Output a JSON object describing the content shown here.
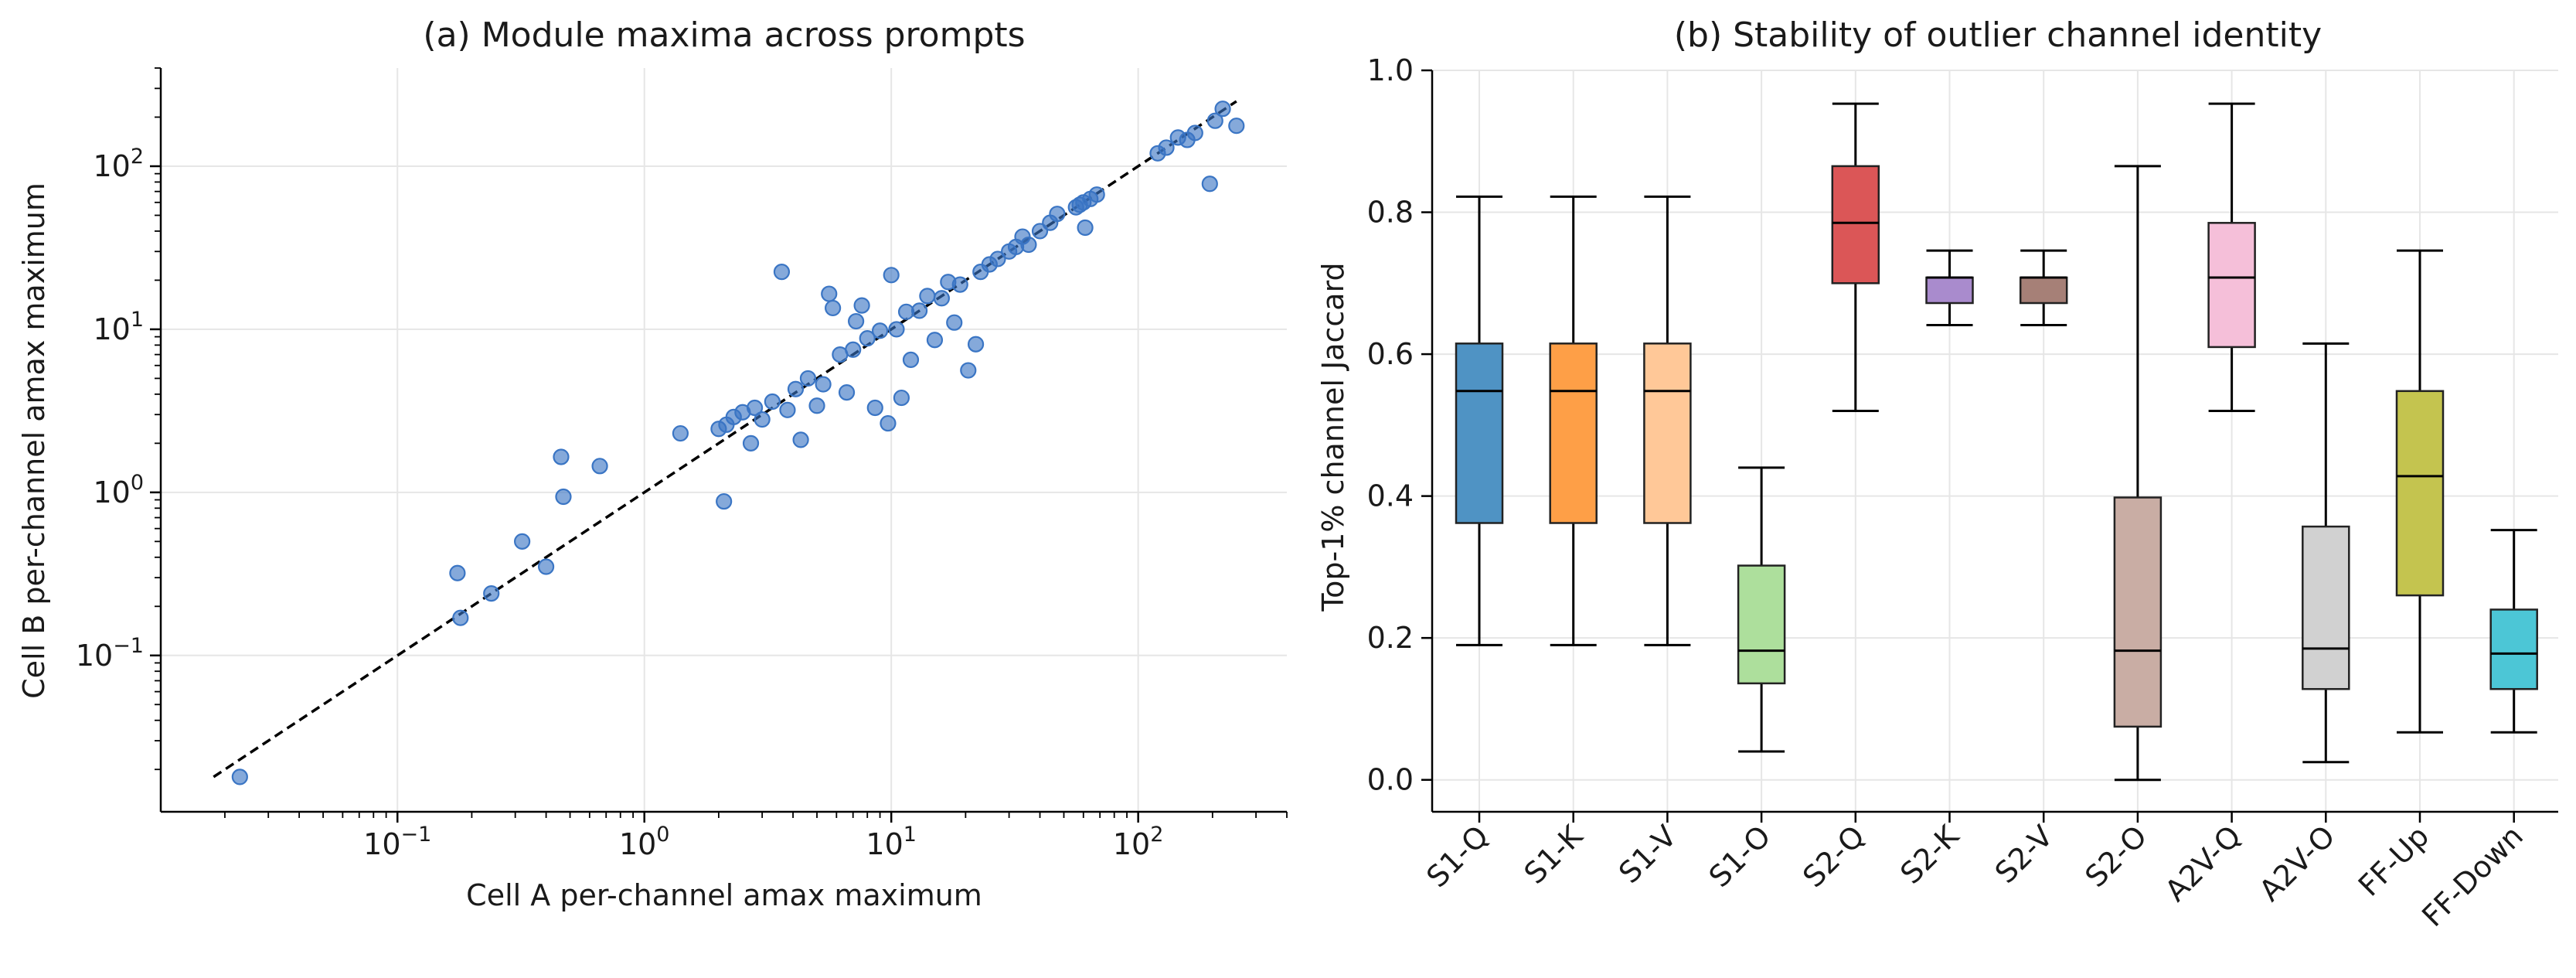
{
  "chart_data": [
    {
      "type": "scatter",
      "title": "(a) Module maxima across prompts",
      "xlabel": "Cell A per-channel amax maximum",
      "ylabel": "Cell B per-channel amax maximum",
      "xscale": "log",
      "yscale": "log",
      "xlim": [
        0.011,
        400
      ],
      "ylim": [
        0.011,
        400
      ],
      "x_ticks": [
        {
          "base": "10",
          "exp": "−1"
        },
        {
          "base": "10",
          "exp": "0"
        },
        {
          "base": "10",
          "exp": "1"
        },
        {
          "base": "10",
          "exp": "2"
        }
      ],
      "y_ticks": [
        {
          "base": "10",
          "exp": "−1"
        },
        {
          "base": "10",
          "exp": "0"
        },
        {
          "base": "10",
          "exp": "1"
        },
        {
          "base": "10",
          "exp": "2"
        }
      ],
      "grid": true,
      "reference_line": {
        "style": "dashed",
        "color": "#000000",
        "from": [
          0.018,
          0.018
        ],
        "to": [
          250,
          250
        ]
      },
      "point_color": "#3a75c4",
      "points": [
        [
          0.023,
          0.018
        ],
        [
          0.18,
          0.17
        ],
        [
          0.175,
          0.32
        ],
        [
          0.24,
          0.24
        ],
        [
          0.32,
          0.5
        ],
        [
          0.4,
          0.35
        ],
        [
          0.46,
          1.65
        ],
        [
          0.47,
          0.94
        ],
        [
          0.66,
          1.45
        ],
        [
          1.4,
          2.3
        ],
        [
          2.0,
          2.45
        ],
        [
          2.1,
          0.88
        ],
        [
          2.15,
          2.6
        ],
        [
          2.3,
          2.9
        ],
        [
          2.5,
          3.1
        ],
        [
          2.7,
          2.0
        ],
        [
          2.8,
          3.3
        ],
        [
          3.0,
          2.8
        ],
        [
          3.3,
          3.6
        ],
        [
          3.6,
          22.5
        ],
        [
          3.8,
          3.2
        ],
        [
          4.1,
          4.3
        ],
        [
          4.3,
          2.1
        ],
        [
          4.6,
          5.0
        ],
        [
          5.0,
          3.4
        ],
        [
          5.3,
          4.6
        ],
        [
          5.6,
          16.5
        ],
        [
          5.8,
          13.5
        ],
        [
          6.2,
          7.0
        ],
        [
          6.6,
          4.1
        ],
        [
          7.0,
          7.5
        ],
        [
          7.2,
          11.2
        ],
        [
          7.6,
          14.0
        ],
        [
          8.0,
          8.8
        ],
        [
          8.6,
          3.3
        ],
        [
          9.0,
          9.8
        ],
        [
          9.7,
          2.65
        ],
        [
          10.0,
          21.5
        ],
        [
          10.5,
          10.0
        ],
        [
          11.0,
          3.8
        ],
        [
          11.5,
          12.8
        ],
        [
          12.0,
          6.5
        ],
        [
          13.0,
          13.0
        ],
        [
          14.0,
          16.0
        ],
        [
          15.0,
          8.6
        ],
        [
          16.0,
          15.5
        ],
        [
          17.0,
          19.5
        ],
        [
          18.0,
          11.0
        ],
        [
          19.0,
          18.8
        ],
        [
          20.5,
          5.6
        ],
        [
          22.0,
          8.1
        ],
        [
          23.0,
          22.5
        ],
        [
          25.0,
          25.0
        ],
        [
          27.0,
          27.0
        ],
        [
          30.0,
          30.0
        ],
        [
          32.0,
          32.0
        ],
        [
          34.0,
          37.0
        ],
        [
          36.0,
          33.0
        ],
        [
          40.0,
          40.0
        ],
        [
          44.0,
          45.0
        ],
        [
          47.0,
          51.0
        ],
        [
          56.0,
          56.0
        ],
        [
          58.0,
          58.0
        ],
        [
          60.0,
          60.0
        ],
        [
          61.0,
          42.0
        ],
        [
          64.0,
          63.0
        ],
        [
          68.0,
          67.0
        ],
        [
          120.0,
          120.0
        ],
        [
          130.0,
          130.0
        ],
        [
          145.0,
          150.0
        ],
        [
          158.0,
          145.0
        ],
        [
          170.0,
          160.0
        ],
        [
          195.0,
          78.0
        ],
        [
          205.0,
          190.0
        ],
        [
          220.0,
          225.0
        ],
        [
          250.0,
          177.0
        ]
      ]
    },
    {
      "type": "box",
      "title": "(b) Stability of outlier channel identity",
      "xlabel": "",
      "ylabel": "Top-1% channel Jaccard",
      "ylim": [
        -0.045,
        1.0
      ],
      "y_ticks": [
        "0.0",
        "0.2",
        "0.4",
        "0.6",
        "0.8",
        "1.0"
      ],
      "grid": true,
      "categories": [
        "S1-Q",
        "S1-K",
        "S1-V",
        "S1-O",
        "S2-Q",
        "S2-K",
        "S2-V",
        "S2-O",
        "A2V-Q",
        "A2V-O",
        "FF-Up",
        "FF-Down"
      ],
      "boxes": [
        {
          "min": 0.19,
          "q1": 0.362,
          "median": 0.548,
          "q3": 0.615,
          "max": 0.822,
          "color": "#4f93c4"
        },
        {
          "min": 0.19,
          "q1": 0.362,
          "median": 0.548,
          "q3": 0.615,
          "max": 0.822,
          "color": "#fe9f47"
        },
        {
          "min": 0.19,
          "q1": 0.362,
          "median": 0.548,
          "q3": 0.615,
          "max": 0.822,
          "color": "#ffc898"
        },
        {
          "min": 0.04,
          "q1": 0.136,
          "median": 0.182,
          "q3": 0.302,
          "max": 0.44,
          "color": "#addf9c"
        },
        {
          "min": 0.52,
          "q1": 0.7,
          "median": 0.785,
          "q3": 0.865,
          "max": 0.953,
          "color": "#db5657"
        },
        {
          "min": 0.641,
          "q1": 0.672,
          "median": 0.708,
          "q3": 0.708,
          "max": 0.746,
          "color": "#a98bcd"
        },
        {
          "min": 0.641,
          "q1": 0.672,
          "median": 0.708,
          "q3": 0.708,
          "max": 0.746,
          "color": "#a68077"
        },
        {
          "min": 0.0,
          "q1": 0.075,
          "median": 0.182,
          "q3": 0.398,
          "max": 0.865,
          "color": "#c9ada4"
        },
        {
          "min": 0.52,
          "q1": 0.61,
          "median": 0.708,
          "q3": 0.785,
          "max": 0.953,
          "color": "#f5bfd9"
        },
        {
          "min": 0.025,
          "q1": 0.128,
          "median": 0.185,
          "q3": 0.357,
          "max": 0.615,
          "color": "#d1d1d1"
        },
        {
          "min": 0.067,
          "q1": 0.26,
          "median": 0.428,
          "q3": 0.548,
          "max": 0.746,
          "color": "#c4c44f"
        },
        {
          "min": 0.067,
          "q1": 0.128,
          "median": 0.178,
          "q3": 0.24,
          "max": 0.352,
          "color": "#4cc6d6"
        }
      ]
    }
  ]
}
